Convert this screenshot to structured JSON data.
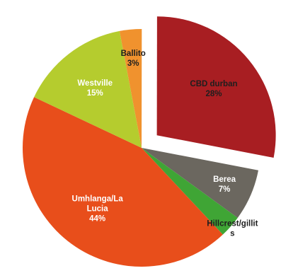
{
  "chart_data": {
    "type": "pie",
    "start_angle_deg": -10.7,
    "direction": "clockwise",
    "exploded": "CBD durban",
    "slices": [
      {
        "name": "Ballito",
        "label_lines": [
          "Ballito",
          "3%"
        ],
        "value": 3,
        "color": "#f0922e",
        "label_color": "#1e1e1e"
      },
      {
        "name": "CBD durban",
        "label_lines": [
          "CBD durban",
          "28%"
        ],
        "value": 28,
        "color": "#a81e22",
        "label_color": "#1e1e1e"
      },
      {
        "name": "Berea",
        "label_lines": [
          "Berea",
          "7%"
        ],
        "value": 7,
        "color": "#6b675f",
        "label_color": "#ffffff"
      },
      {
        "name": "Hillcrest/gillits",
        "label_lines": [
          "Hillcrest/gillit",
          "s"
        ],
        "value": 3,
        "color": "#3fa535",
        "label_color": "#1e1e1e"
      },
      {
        "name": "Umhlanga/La Lucia",
        "label_lines": [
          "Umhlanga/La",
          "Lucia",
          "44%"
        ],
        "value": 44,
        "color": "#e84e1b",
        "label_color": "#ffffff"
      },
      {
        "name": "Westville",
        "label_lines": [
          "Westville",
          "15%"
        ],
        "value": 15,
        "color": "#b5cc2e",
        "label_color": "#ffffff"
      }
    ]
  }
}
